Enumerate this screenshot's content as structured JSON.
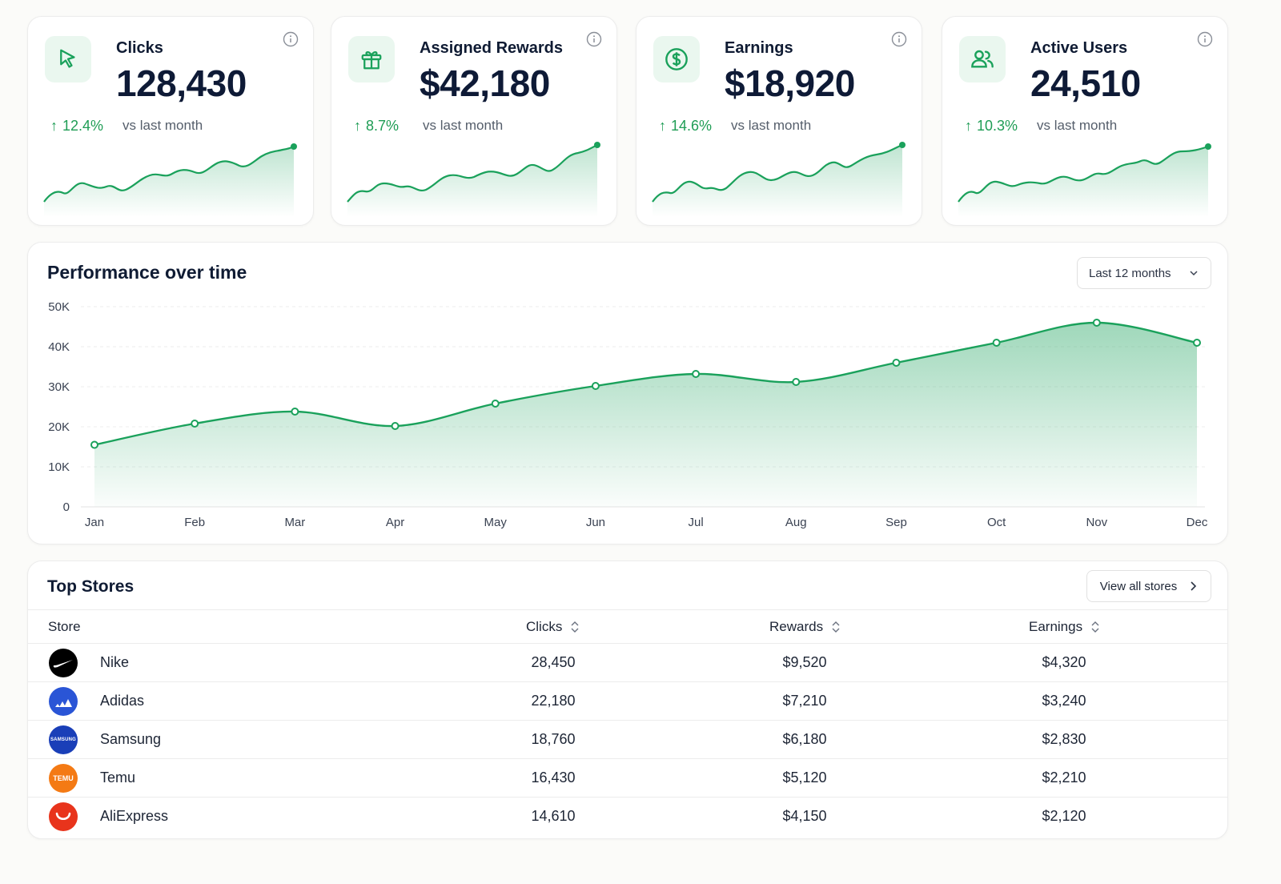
{
  "kpis": [
    {
      "label": "Clicks",
      "value": "128,430",
      "change": "12.4%",
      "compare": "vs last month",
      "icon": "cursor-icon"
    },
    {
      "label": "Assigned Rewards",
      "value": "$42,180",
      "change": "8.7%",
      "compare": "vs last month",
      "icon": "gift-icon"
    },
    {
      "label": "Earnings",
      "value": "$18,920",
      "change": "14.6%",
      "compare": "vs last month",
      "icon": "dollar-icon"
    },
    {
      "label": "Active Users",
      "value": "24,510",
      "change": "10.3%",
      "compare": "vs last month",
      "icon": "users-icon"
    }
  ],
  "performance": {
    "title": "Performance over time",
    "range": "Last 12 months"
  },
  "chart_data": {
    "type": "area",
    "categories": [
      "Jan",
      "Feb",
      "Mar",
      "Apr",
      "May",
      "Jun",
      "Jul",
      "Aug",
      "Sep",
      "Oct",
      "Nov",
      "Dec"
    ],
    "values": [
      15500,
      20800,
      23800,
      20200,
      25800,
      30200,
      33200,
      31200,
      36000,
      41000,
      46000,
      41000
    ],
    "ylim": [
      0,
      50000
    ],
    "yticks": [
      "0",
      "10K",
      "20K",
      "30K",
      "40K",
      "50K"
    ],
    "grid": true,
    "color": "#1aa15b"
  },
  "stores": {
    "title": "Top Stores",
    "view_all": "View all stores",
    "headers": {
      "store": "Store",
      "clicks": "Clicks",
      "rewards": "Rewards",
      "earnings": "Earnings"
    },
    "rows": [
      {
        "name": "Nike",
        "clicks": "28,450",
        "rewards": "$9,520",
        "earnings": "$4,320",
        "logo": "nike-logo",
        "logo_text": ""
      },
      {
        "name": "Adidas",
        "clicks": "22,180",
        "rewards": "$7,210",
        "earnings": "$3,240",
        "logo": "adidas-logo",
        "logo_text": ""
      },
      {
        "name": "Samsung",
        "clicks": "18,760",
        "rewards": "$6,180",
        "earnings": "$2,830",
        "logo": "samsung-logo",
        "logo_text": "SAMSUNG"
      },
      {
        "name": "Temu",
        "clicks": "16,430",
        "rewards": "$5,120",
        "earnings": "$2,210",
        "logo": "temu-logo",
        "logo_text": "TEMU"
      },
      {
        "name": "AliExpress",
        "clicks": "14,610",
        "rewards": "$4,150",
        "earnings": "$2,120",
        "logo": "aliexpress-logo",
        "logo_text": ""
      }
    ]
  },
  "colors": {
    "accent": "#1aa15b",
    "accent_light": "#eaf7ef",
    "text": "#0f1b33"
  }
}
